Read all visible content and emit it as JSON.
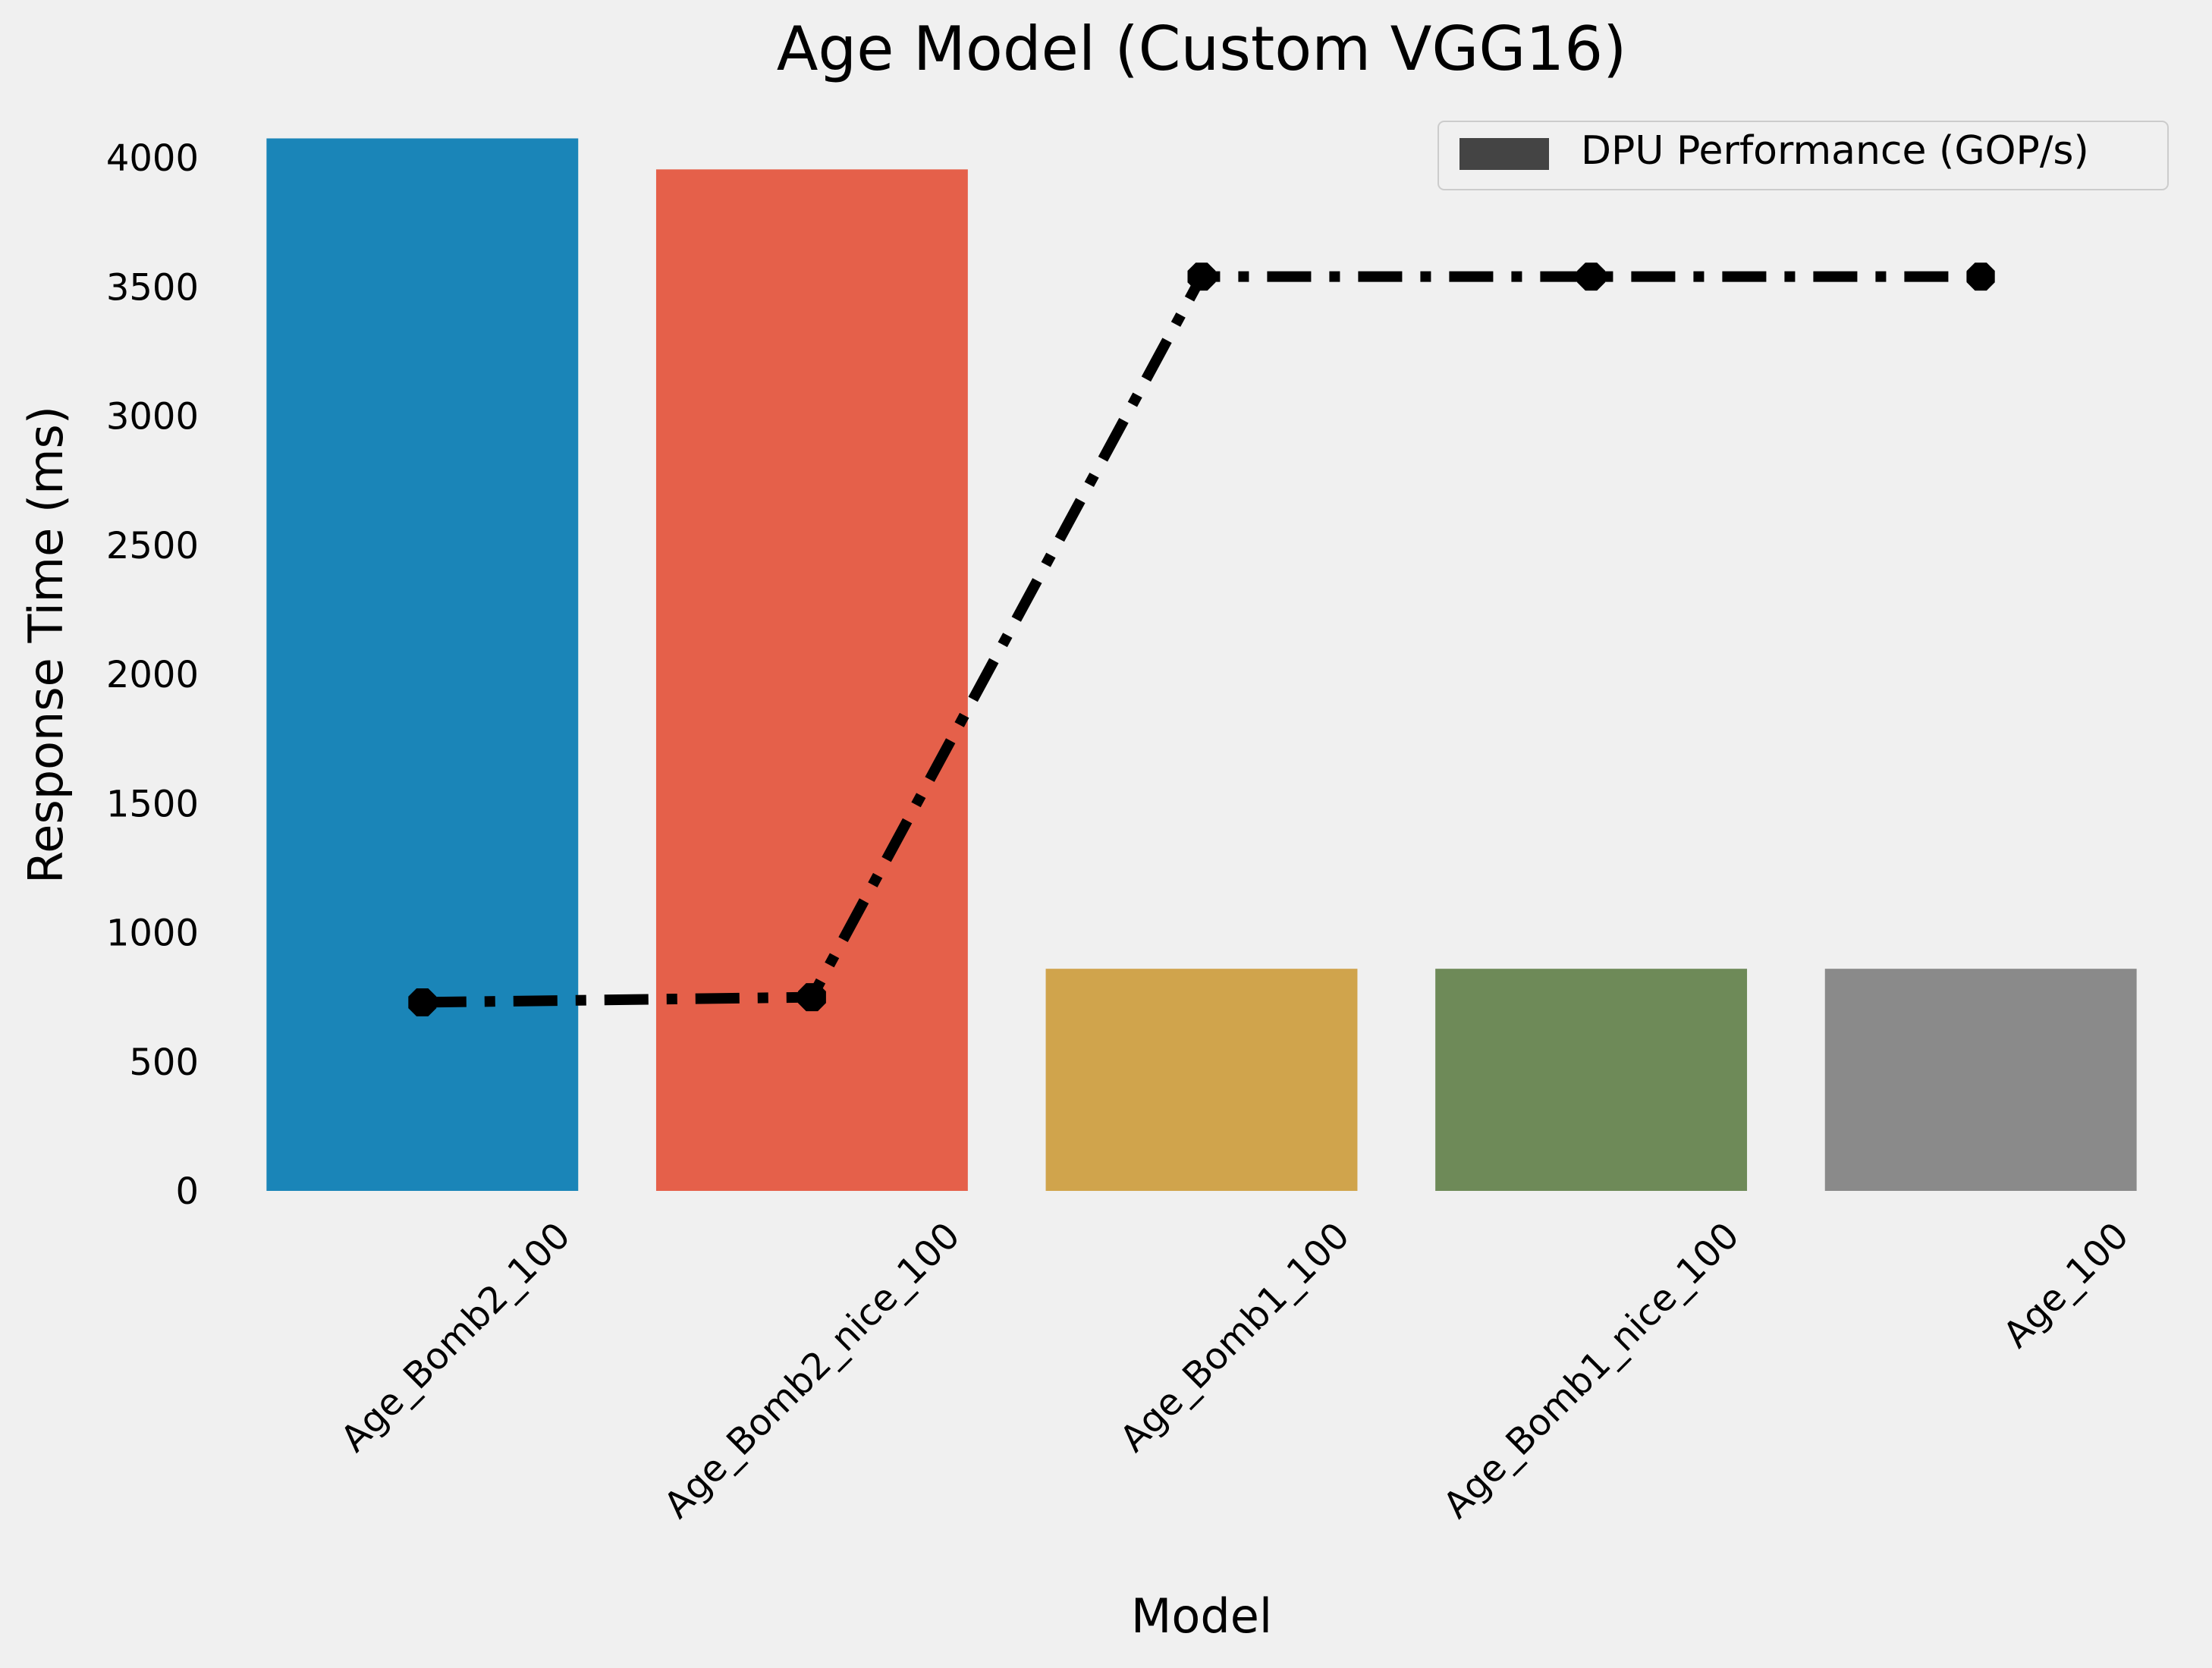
{
  "chart_data": {
    "type": "bar",
    "title": "Age Model (Custom VGG16)",
    "xlabel": "Model",
    "ylabel": "Response Time (ms)",
    "categories": [
      "Age_Bomb2_100",
      "Age_Bomb2_nice_100",
      "Age_Bomb1_100",
      "Age_Bomb1_nice_100",
      "Age_100"
    ],
    "values": [
      4075,
      3955,
      860,
      860,
      860
    ],
    "bar_colors": [
      "#1a85b8",
      "#e5604a",
      "#d0a44c",
      "#6e8a58",
      "#8a8a8a"
    ],
    "line": {
      "values": [
        730,
        750,
        3540,
        3540,
        3540
      ],
      "color": "#000000",
      "style": "dash-dot",
      "marker": "octagon"
    },
    "legend": {
      "entries": [
        "DPU Performance (GOP/s)"
      ],
      "placement": "top-right",
      "swatch_color": "#444444"
    },
    "ylim": [
      0,
      4150
    ],
    "yticks": [
      0,
      500,
      1000,
      1500,
      2000,
      2500,
      3000,
      3500,
      4000
    ],
    "grid": false
  }
}
